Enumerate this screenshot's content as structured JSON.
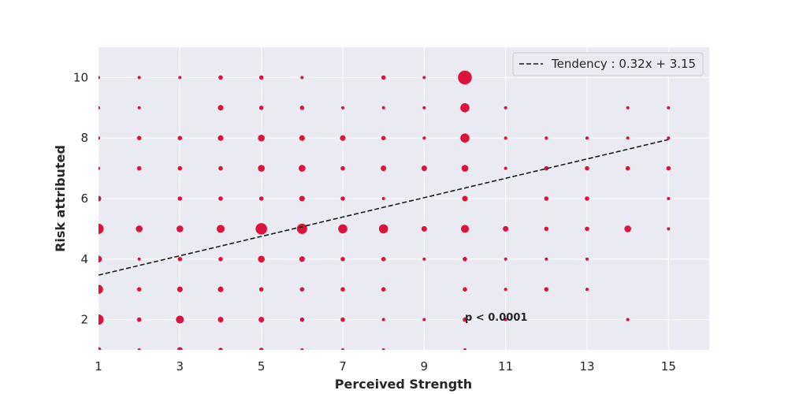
{
  "chart_data": {
    "type": "scatter",
    "title": "",
    "xlabel": "Perceived Strength",
    "ylabel": "Risk attributed",
    "xlim": [
      1,
      16
    ],
    "ylim": [
      1,
      11
    ],
    "xticks": [
      1,
      3,
      5,
      7,
      9,
      11,
      13,
      15
    ],
    "yticks": [
      2,
      4,
      6,
      8,
      10
    ],
    "grid": true,
    "marker_color": "#dc143c",
    "background_color": "#eaeaf2",
    "legend_position": "top-right",
    "annotation": "p < 0.0001",
    "trend_line": {
      "label": "Tendency : 0.32x + 3.15",
      "slope": 0.32,
      "intercept": 3.15,
      "x_range": [
        1,
        15
      ],
      "color": "#1a1a1a",
      "style": "dashed"
    },
    "points": [
      {
        "x": 1,
        "y": 1,
        "n": 3
      },
      {
        "x": 1,
        "y": 2,
        "n": 7
      },
      {
        "x": 1,
        "y": 3,
        "n": 6
      },
      {
        "x": 1,
        "y": 4,
        "n": 4
      },
      {
        "x": 1,
        "y": 5,
        "n": 7
      },
      {
        "x": 1,
        "y": 6,
        "n": 3
      },
      {
        "x": 1,
        "y": 7,
        "n": 1
      },
      {
        "x": 1,
        "y": 8,
        "n": 1
      },
      {
        "x": 1,
        "y": 9,
        "n": 1
      },
      {
        "x": 1,
        "y": 10,
        "n": 1
      },
      {
        "x": 2,
        "y": 1,
        "n": 1
      },
      {
        "x": 2,
        "y": 2,
        "n": 2
      },
      {
        "x": 2,
        "y": 3,
        "n": 2
      },
      {
        "x": 2,
        "y": 4,
        "n": 1
      },
      {
        "x": 2,
        "y": 5,
        "n": 4
      },
      {
        "x": 2,
        "y": 7,
        "n": 2
      },
      {
        "x": 2,
        "y": 8,
        "n": 2
      },
      {
        "x": 2,
        "y": 9,
        "n": 1
      },
      {
        "x": 2,
        "y": 10,
        "n": 1
      },
      {
        "x": 3,
        "y": 1,
        "n": 3
      },
      {
        "x": 3,
        "y": 2,
        "n": 5
      },
      {
        "x": 3,
        "y": 3,
        "n": 3
      },
      {
        "x": 3,
        "y": 4,
        "n": 2
      },
      {
        "x": 3,
        "y": 5,
        "n": 4
      },
      {
        "x": 3,
        "y": 6,
        "n": 2
      },
      {
        "x": 3,
        "y": 7,
        "n": 2
      },
      {
        "x": 3,
        "y": 8,
        "n": 2
      },
      {
        "x": 3,
        "y": 10,
        "n": 1
      },
      {
        "x": 4,
        "y": 1,
        "n": 2
      },
      {
        "x": 4,
        "y": 2,
        "n": 3
      },
      {
        "x": 4,
        "y": 3,
        "n": 3
      },
      {
        "x": 4,
        "y": 4,
        "n": 2
      },
      {
        "x": 4,
        "y": 5,
        "n": 5
      },
      {
        "x": 4,
        "y": 6,
        "n": 2
      },
      {
        "x": 4,
        "y": 7,
        "n": 2
      },
      {
        "x": 4,
        "y": 8,
        "n": 3
      },
      {
        "x": 4,
        "y": 9,
        "n": 3
      },
      {
        "x": 4,
        "y": 10,
        "n": 2
      },
      {
        "x": 5,
        "y": 1,
        "n": 2
      },
      {
        "x": 5,
        "y": 2,
        "n": 3
      },
      {
        "x": 5,
        "y": 3,
        "n": 2
      },
      {
        "x": 5,
        "y": 4,
        "n": 4
      },
      {
        "x": 5,
        "y": 5,
        "n": 8
      },
      {
        "x": 5,
        "y": 6,
        "n": 2
      },
      {
        "x": 5,
        "y": 7,
        "n": 4
      },
      {
        "x": 5,
        "y": 8,
        "n": 4
      },
      {
        "x": 5,
        "y": 9,
        "n": 2
      },
      {
        "x": 5,
        "y": 10,
        "n": 2
      },
      {
        "x": 6,
        "y": 1,
        "n": 1
      },
      {
        "x": 6,
        "y": 2,
        "n": 2
      },
      {
        "x": 6,
        "y": 3,
        "n": 2
      },
      {
        "x": 6,
        "y": 4,
        "n": 3
      },
      {
        "x": 6,
        "y": 5,
        "n": 7
      },
      {
        "x": 6,
        "y": 6,
        "n": 3
      },
      {
        "x": 6,
        "y": 7,
        "n": 4
      },
      {
        "x": 6,
        "y": 8,
        "n": 3
      },
      {
        "x": 6,
        "y": 9,
        "n": 2
      },
      {
        "x": 6,
        "y": 10,
        "n": 1
      },
      {
        "x": 7,
        "y": 1,
        "n": 1
      },
      {
        "x": 7,
        "y": 2,
        "n": 2
      },
      {
        "x": 7,
        "y": 3,
        "n": 2
      },
      {
        "x": 7,
        "y": 4,
        "n": 2
      },
      {
        "x": 7,
        "y": 5,
        "n": 6
      },
      {
        "x": 7,
        "y": 6,
        "n": 2
      },
      {
        "x": 7,
        "y": 7,
        "n": 2
      },
      {
        "x": 7,
        "y": 8,
        "n": 3
      },
      {
        "x": 7,
        "y": 9,
        "n": 1
      },
      {
        "x": 8,
        "y": 1,
        "n": 1
      },
      {
        "x": 8,
        "y": 2,
        "n": 1
      },
      {
        "x": 8,
        "y": 3,
        "n": 2
      },
      {
        "x": 8,
        "y": 4,
        "n": 2
      },
      {
        "x": 8,
        "y": 5,
        "n": 6
      },
      {
        "x": 8,
        "y": 6,
        "n": 1
      },
      {
        "x": 8,
        "y": 7,
        "n": 3
      },
      {
        "x": 8,
        "y": 8,
        "n": 2
      },
      {
        "x": 8,
        "y": 9,
        "n": 1
      },
      {
        "x": 8,
        "y": 10,
        "n": 2
      },
      {
        "x": 9,
        "y": 2,
        "n": 1
      },
      {
        "x": 9,
        "y": 4,
        "n": 1
      },
      {
        "x": 9,
        "y": 5,
        "n": 3
      },
      {
        "x": 9,
        "y": 7,
        "n": 3
      },
      {
        "x": 9,
        "y": 8,
        "n": 1
      },
      {
        "x": 9,
        "y": 9,
        "n": 1
      },
      {
        "x": 9,
        "y": 10,
        "n": 1
      },
      {
        "x": 10,
        "y": 1,
        "n": 1
      },
      {
        "x": 10,
        "y": 2,
        "n": 2
      },
      {
        "x": 10,
        "y": 3,
        "n": 2
      },
      {
        "x": 10,
        "y": 4,
        "n": 2
      },
      {
        "x": 10,
        "y": 5,
        "n": 5
      },
      {
        "x": 10,
        "y": 6,
        "n": 3
      },
      {
        "x": 10,
        "y": 7,
        "n": 4
      },
      {
        "x": 10,
        "y": 8,
        "n": 6
      },
      {
        "x": 10,
        "y": 9,
        "n": 6
      },
      {
        "x": 10,
        "y": 10,
        "n": 10
      },
      {
        "x": 11,
        "y": 2,
        "n": 1
      },
      {
        "x": 11,
        "y": 3,
        "n": 1
      },
      {
        "x": 11,
        "y": 4,
        "n": 1
      },
      {
        "x": 11,
        "y": 5,
        "n": 3
      },
      {
        "x": 11,
        "y": 7,
        "n": 1
      },
      {
        "x": 11,
        "y": 8,
        "n": 1
      },
      {
        "x": 11,
        "y": 9,
        "n": 1
      },
      {
        "x": 12,
        "y": 3,
        "n": 2
      },
      {
        "x": 12,
        "y": 4,
        "n": 1
      },
      {
        "x": 12,
        "y": 5,
        "n": 2
      },
      {
        "x": 12,
        "y": 6,
        "n": 2
      },
      {
        "x": 12,
        "y": 7,
        "n": 2
      },
      {
        "x": 12,
        "y": 8,
        "n": 1
      },
      {
        "x": 13,
        "y": 3,
        "n": 1
      },
      {
        "x": 13,
        "y": 4,
        "n": 1
      },
      {
        "x": 13,
        "y": 5,
        "n": 2
      },
      {
        "x": 13,
        "y": 6,
        "n": 2
      },
      {
        "x": 13,
        "y": 7,
        "n": 2
      },
      {
        "x": 13,
        "y": 8,
        "n": 1
      },
      {
        "x": 14,
        "y": 2,
        "n": 1
      },
      {
        "x": 14,
        "y": 5,
        "n": 4
      },
      {
        "x": 14,
        "y": 7,
        "n": 2
      },
      {
        "x": 14,
        "y": 8,
        "n": 1
      },
      {
        "x": 14,
        "y": 9,
        "n": 1
      },
      {
        "x": 15,
        "y": 5,
        "n": 1
      },
      {
        "x": 15,
        "y": 6,
        "n": 1
      },
      {
        "x": 15,
        "y": 7,
        "n": 2
      },
      {
        "x": 15,
        "y": 8,
        "n": 1
      },
      {
        "x": 15,
        "y": 9,
        "n": 1
      }
    ]
  }
}
